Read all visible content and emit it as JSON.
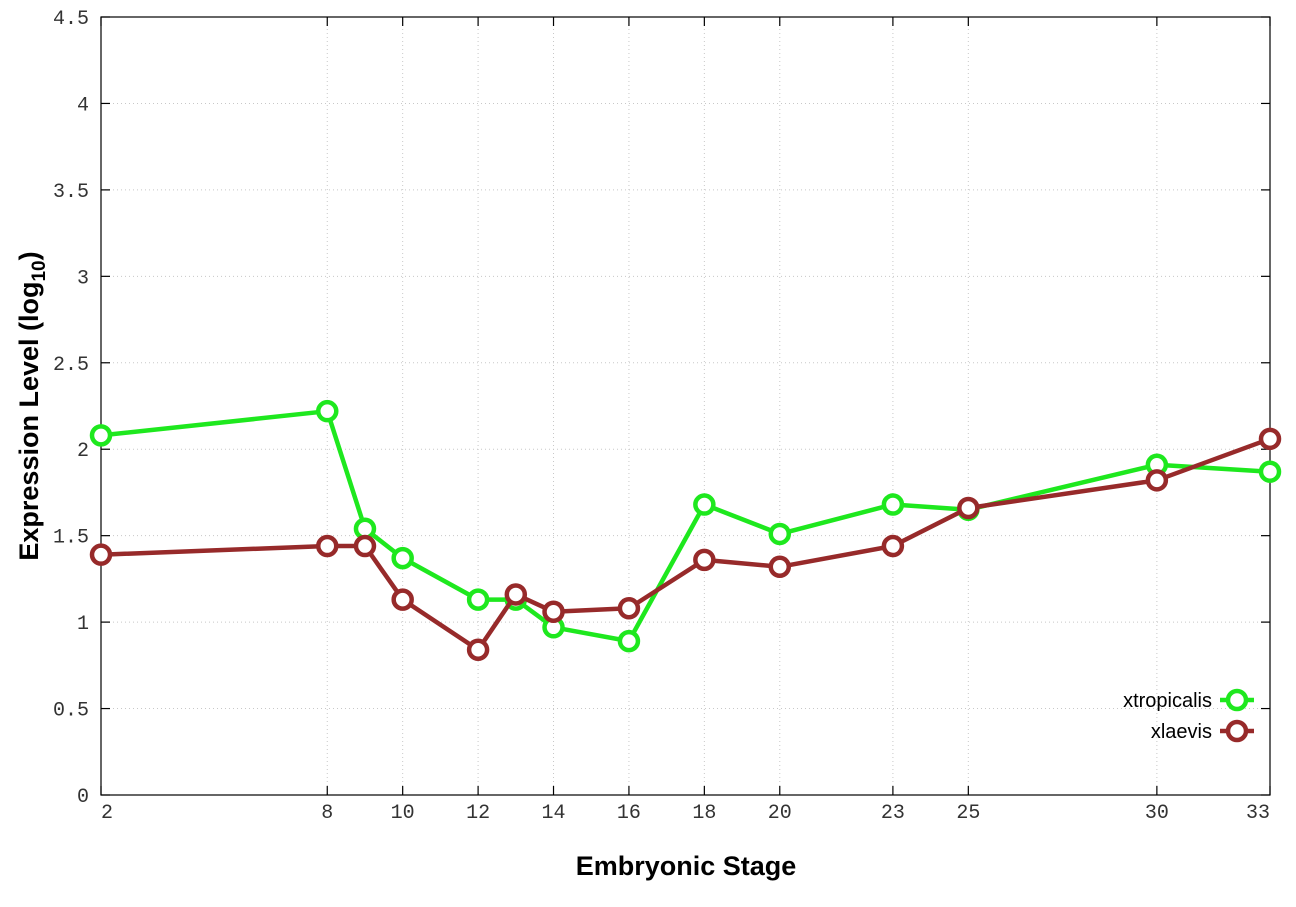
{
  "chart_data": {
    "type": "line",
    "title": "",
    "xlabel": "Embryonic Stage",
    "ylabel": "Expression Level (log",
    "ylabel_subscript": "10",
    "ylabel_suffix": ")",
    "xlim": [
      2,
      33
    ],
    "ylim": [
      0,
      4.5
    ],
    "x_ticks": [
      2,
      8,
      10,
      12,
      14,
      16,
      18,
      20,
      23,
      25,
      30,
      33
    ],
    "y_ticks": [
      0,
      0.5,
      1,
      1.5,
      2,
      2.5,
      3,
      3.5,
      4,
      4.5
    ],
    "y_tick_labels": [
      "0",
      "0.5",
      "1",
      "1.5",
      "2",
      "2.5",
      "3",
      "3.5",
      "4",
      "4.5"
    ],
    "grid": true,
    "legend_position": "bottom-right",
    "x": [
      2,
      8,
      9,
      10,
      12,
      13,
      14,
      16,
      18,
      20,
      23,
      25,
      30,
      33
    ],
    "series": [
      {
        "name": "xtropicalis",
        "color": "#1ee81e",
        "values": [
          2.08,
          2.22,
          1.54,
          1.37,
          1.13,
          1.13,
          0.97,
          0.89,
          1.68,
          1.51,
          1.68,
          1.65,
          1.91,
          1.87
        ]
      },
      {
        "name": "xlaevis",
        "color": "#972a2a",
        "values": [
          1.39,
          1.44,
          1.44,
          1.13,
          0.84,
          1.16,
          1.06,
          1.08,
          1.36,
          1.32,
          1.44,
          1.66,
          1.82,
          2.06
        ]
      }
    ]
  }
}
